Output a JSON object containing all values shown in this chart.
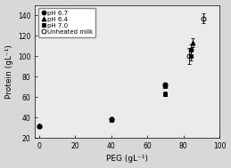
{
  "xlabel": "PEG (gL⁻¹)",
  "ylabel": "Protein (gL⁻¹)",
  "xlim": [
    -2,
    100
  ],
  "ylim": [
    20,
    150
  ],
  "xticks": [
    0,
    20,
    40,
    60,
    80,
    100
  ],
  "yticks": [
    20,
    40,
    60,
    80,
    100,
    120,
    140
  ],
  "series": {
    "pH 6.7": {
      "x": [
        0,
        40,
        70,
        84
      ],
      "y": [
        31,
        38,
        72,
        106
      ],
      "yerr": [
        null,
        null,
        2,
        5
      ],
      "marker": "o",
      "color": "black",
      "fillstyle": "full",
      "markersize": 3.5
    },
    "pH 6.4": {
      "x": [
        0,
        40,
        70,
        85
      ],
      "y": [
        32,
        38,
        71,
        113
      ],
      "yerr": [
        null,
        null,
        2,
        4
      ],
      "marker": "^",
      "color": "black",
      "fillstyle": "full",
      "markersize": 3.5
    },
    "pH 7.0": {
      "x": [
        0,
        40,
        70,
        84
      ],
      "y": [
        31,
        37,
        63,
        100
      ],
      "yerr": [
        null,
        null,
        2,
        4
      ],
      "marker": "s",
      "color": "black",
      "fillstyle": "full",
      "markersize": 3.5
    },
    "Unheated milk": {
      "x": [
        0,
        40,
        70,
        83,
        91
      ],
      "y": [
        31,
        38,
        71,
        100,
        137
      ],
      "yerr": [
        null,
        null,
        2,
        8,
        5
      ],
      "marker": "o",
      "color": "black",
      "fillstyle": "none",
      "markersize": 3.5
    }
  },
  "background_color": "#d8d8d8",
  "plot_bg_color": "#ebebeb",
  "legend_fontsize": 5.0,
  "axis_fontsize": 6.5,
  "tick_fontsize": 5.5
}
